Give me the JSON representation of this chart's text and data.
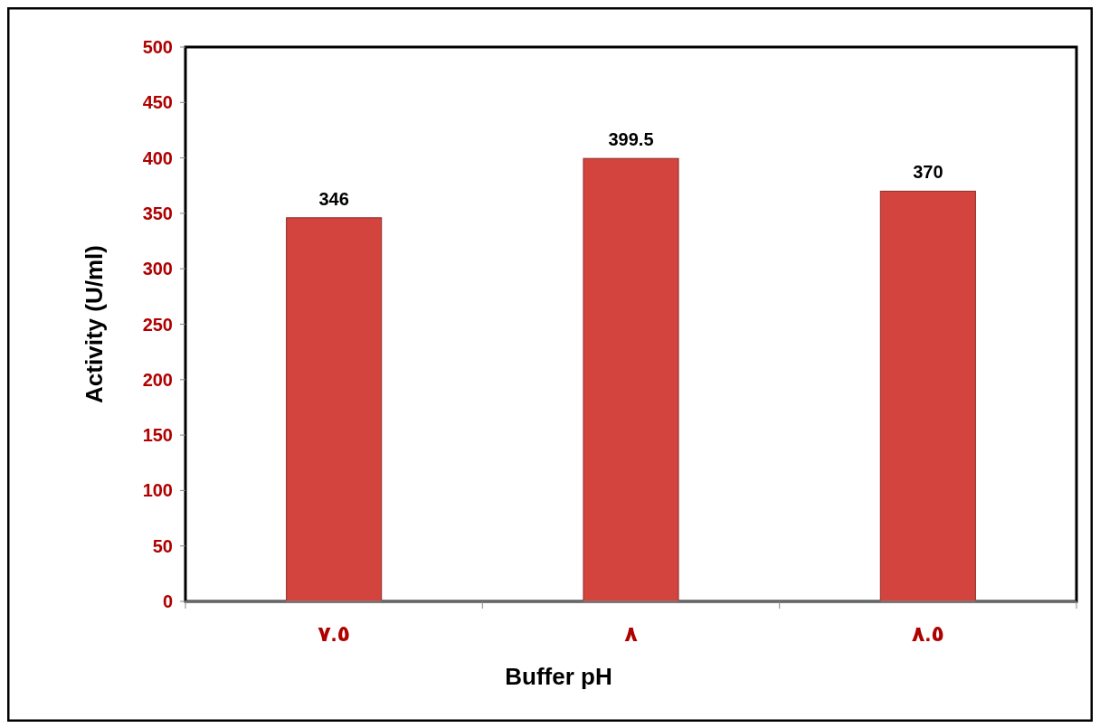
{
  "chart_data": {
    "type": "bar",
    "xlabel": "Buffer pH",
    "ylabel": "Activity (U/ml)",
    "categories": [
      "٧.٥",
      "٨",
      "٨.٥"
    ],
    "values": [
      346,
      399.5,
      370
    ],
    "color": "#d4443e",
    "ylim": [
      0,
      500
    ],
    "yticks": [
      0,
      50,
      100,
      150,
      200,
      250,
      300,
      350,
      400,
      450,
      500
    ],
    "data_labels": true
  }
}
